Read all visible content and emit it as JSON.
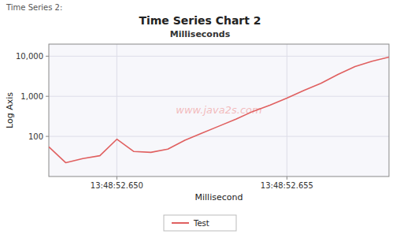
{
  "chart_data": {
    "type": "line",
    "title": "Time Series Chart 2",
    "subtitle": "Milliseconds",
    "x_label": "Millisecond",
    "y_label": "Log Axis",
    "annotations": [
      "Time Series 2:",
      "www.java2s.com"
    ],
    "x": [
      0,
      1,
      2,
      3,
      4,
      5,
      6,
      7,
      8,
      9,
      10,
      11,
      12,
      13,
      14,
      15,
      16,
      17,
      18,
      19,
      20
    ],
    "series": [
      {
        "name": "Test",
        "color": "#e06060",
        "values": [
          55,
          22,
          28,
          33,
          85,
          42,
          40,
          48,
          80,
          120,
          180,
          270,
          420,
          600,
          900,
          1400,
          2100,
          3500,
          5500,
          7500,
          9500
        ]
      }
    ],
    "xlim": [
      0,
      20
    ],
    "xticks": [
      {
        "value": 4,
        "label": "13:48:52.650"
      },
      {
        "value": 14,
        "label": "13:48:52.655"
      }
    ],
    "ylim": [
      10,
      20000
    ],
    "yticks": [
      100,
      {
        "value": 1000,
        "label": "1,000"
      },
      {
        "value": 10000,
        "label": "10,000"
      }
    ],
    "log": "y",
    "grid": true,
    "legend": "bottom"
  }
}
